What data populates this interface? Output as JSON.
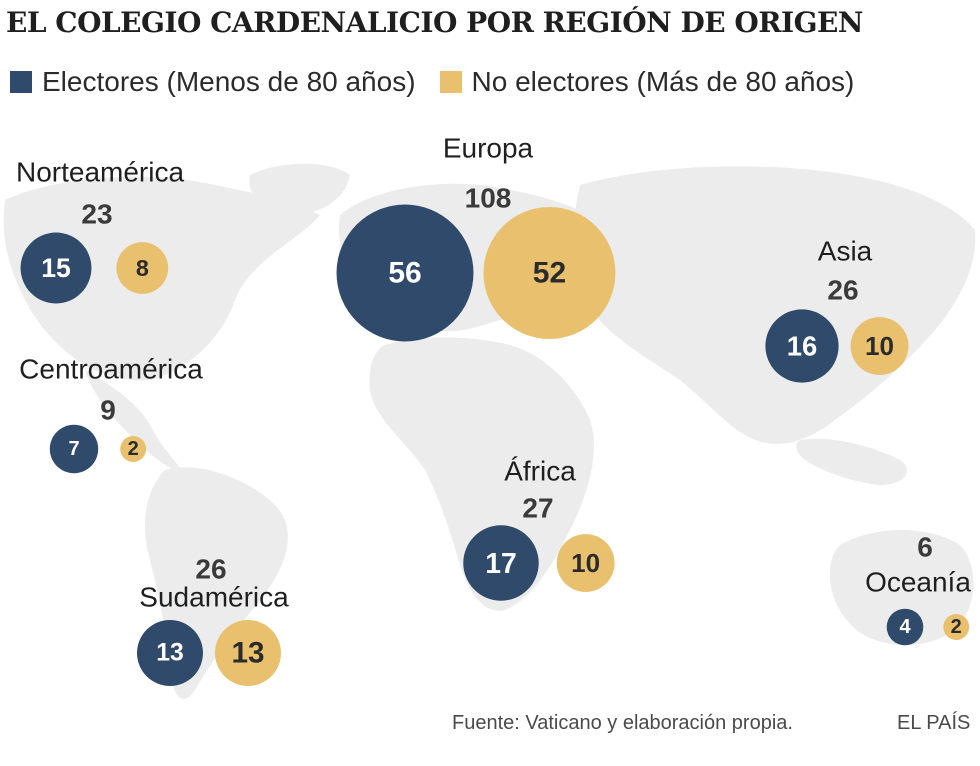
{
  "colors": {
    "electores": "#2f4a6b",
    "no_electores": "#e8c06e",
    "land": "#ececec",
    "text": "#1f1f1f",
    "total": "#3a3a3a"
  },
  "footer": {
    "source": "Fuente: Vaticano y elaboración propia.",
    "brand": "EL PAÍS"
  },
  "chart_data": {
    "type": "proportional-symbol-map",
    "title": "EL COLEGIO CARDENALICIO POR REGIÓN DE ORIGEN",
    "legend": [
      "Electores (Menos de 80 años)",
      "No electores (Más de 80 años)"
    ],
    "series_names": [
      "Electores (Menos de 80 años)",
      "No electores (Más de 80 años)"
    ],
    "regions": [
      {
        "name": "Norteamérica",
        "total": 23,
        "electores": 15,
        "no_electores": 8
      },
      {
        "name": "Europa",
        "total": 108,
        "electores": 56,
        "no_electores": 52
      },
      {
        "name": "Asia",
        "total": 26,
        "electores": 16,
        "no_electores": 10
      },
      {
        "name": "Centroamérica",
        "total": 9,
        "electores": 7,
        "no_electores": 2
      },
      {
        "name": "África",
        "total": 27,
        "electores": 17,
        "no_electores": 10
      },
      {
        "name": "Sudamérica",
        "total": 26,
        "electores": 13,
        "no_electores": 13
      },
      {
        "name": "Oceanía",
        "total": 6,
        "electores": 4,
        "no_electores": 2
      }
    ]
  }
}
